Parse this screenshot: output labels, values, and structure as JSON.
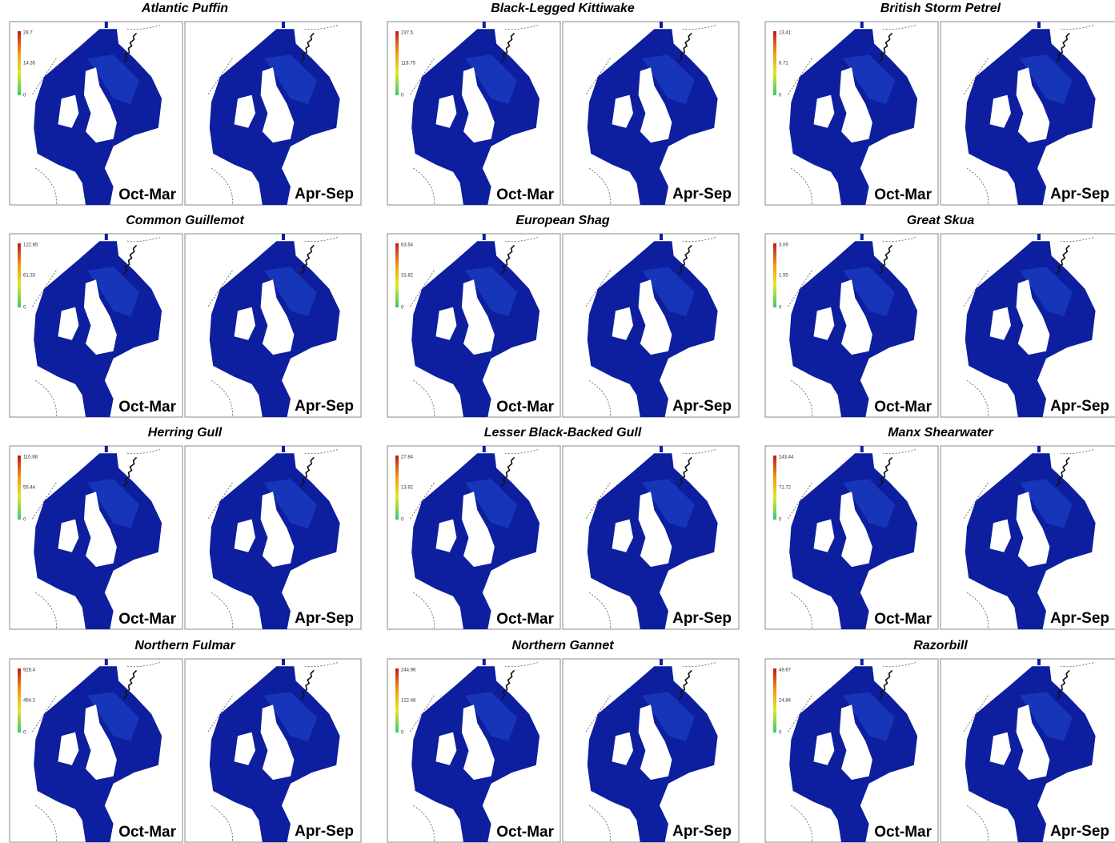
{
  "panels": [
    {
      "title": "Atlantic Puffin",
      "legend": [
        28.7,
        14.35,
        0
      ]
    },
    {
      "title": "Black-Legged Kittiwake",
      "legend": [
        237.5,
        118.75,
        0
      ]
    },
    {
      "title": "British Storm Petrel",
      "legend": [
        13.41,
        6.71,
        0
      ]
    },
    {
      "title": "Common Guillemot",
      "legend": [
        122.65,
        61.33,
        0
      ]
    },
    {
      "title": "European Shag",
      "legend": [
        63.64,
        31.82,
        0
      ]
    },
    {
      "title": "Great Skua",
      "legend": [
        3.09,
        1.55,
        0
      ]
    },
    {
      "title": "Herring Gull",
      "legend": [
        110.88,
        55.44,
        0
      ]
    },
    {
      "title": "Lesser Black-Backed Gull",
      "legend": [
        27.84,
        13.92,
        0
      ]
    },
    {
      "title": "Manx Shearwater",
      "legend": [
        143.44,
        71.72,
        0
      ]
    },
    {
      "title": "Northern Fulmar",
      "legend": [
        928.4,
        464.2,
        0
      ]
    },
    {
      "title": "Northern Gannet",
      "legend": [
        244.96,
        122.48,
        0
      ]
    },
    {
      "title": "Razorbill",
      "legend": [
        49.67,
        24.84,
        0
      ]
    }
  ],
  "seasons": [
    "Oct-Mar",
    "Apr-Sep"
  ]
}
